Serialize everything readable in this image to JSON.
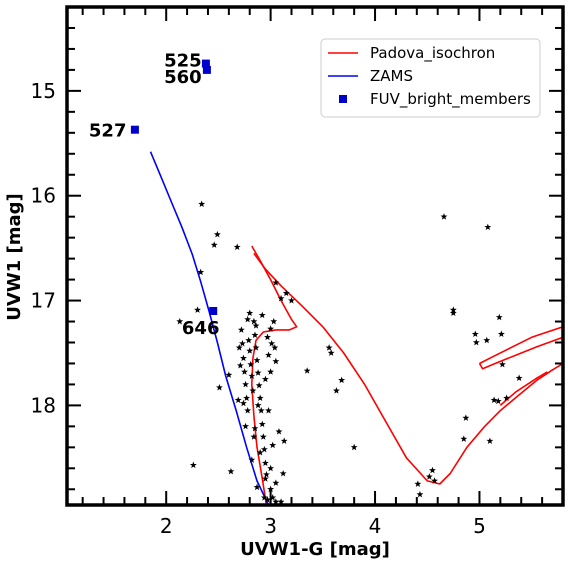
{
  "chart_data": {
    "type": "scatter",
    "xlabel": "UVW1-G [mag]",
    "ylabel": "UVW1 [mag]",
    "xlim": [
      1.05,
      5.8
    ],
    "ylim": [
      18.95,
      14.2
    ],
    "y_inverted": true,
    "grid": false,
    "legend_position": "top-right",
    "x_ticks": [
      2,
      3,
      4,
      5
    ],
    "y_ticks": [
      15,
      16,
      17,
      18
    ],
    "x_tick_labels": [
      "2",
      "3",
      "4",
      "5"
    ],
    "y_tick_labels": [
      "15",
      "16",
      "17",
      "18"
    ],
    "legend": [
      {
        "label": "Padova_isochron",
        "color": "#ff0000",
        "kind": "line"
      },
      {
        "label": "ZAMS",
        "color": "#0000ff",
        "kind": "line"
      },
      {
        "label": "FUV_bright_members",
        "color": "#0000cc",
        "kind": "square"
      }
    ],
    "series": [
      {
        "name": "Padova_isochron",
        "kind": "line",
        "color": "#ff0000",
        "segments": [
          [
            [
              2.82,
              16.48
            ],
            [
              2.9,
              16.62
            ],
            [
              3.0,
              16.8
            ],
            [
              3.1,
              17.0
            ],
            [
              3.2,
              17.18
            ],
            [
              3.25,
              17.25
            ],
            [
              3.18,
              17.28
            ],
            [
              3.05,
              17.28
            ],
            [
              2.93,
              17.3
            ],
            [
              2.86,
              17.38
            ],
            [
              2.83,
              17.55
            ],
            [
              2.82,
              17.8
            ],
            [
              2.84,
              18.1
            ],
            [
              2.87,
              18.4
            ],
            [
              2.92,
              18.7
            ],
            [
              2.96,
              18.95
            ]
          ],
          [
            [
              2.84,
              16.55
            ],
            [
              2.95,
              16.7
            ],
            [
              3.1,
              16.86
            ],
            [
              3.3,
              17.05
            ],
            [
              3.5,
              17.25
            ],
            [
              3.7,
              17.5
            ],
            [
              3.9,
              17.8
            ],
            [
              4.1,
              18.15
            ],
            [
              4.3,
              18.5
            ],
            [
              4.5,
              18.72
            ],
            [
              4.62,
              18.75
            ],
            [
              4.72,
              18.65
            ],
            [
              4.88,
              18.4
            ],
            [
              5.05,
              18.2
            ],
            [
              5.2,
              18.05
            ],
            [
              5.38,
              17.9
            ],
            [
              5.55,
              17.76
            ],
            [
              5.7,
              17.66
            ],
            [
              5.8,
              17.6
            ]
          ],
          [
            [
              5.0,
              17.6
            ],
            [
              5.1,
              17.55
            ],
            [
              5.3,
              17.45
            ],
            [
              5.5,
              17.35
            ],
            [
              5.8,
              17.25
            ]
          ],
          [
            [
              5.0,
              17.6
            ],
            [
              5.03,
              17.65
            ],
            [
              5.15,
              17.6
            ],
            [
              5.35,
              17.52
            ],
            [
              5.55,
              17.44
            ],
            [
              5.8,
              17.35
            ]
          ],
          [
            [
              5.2,
              18.0
            ],
            [
              5.35,
              17.87
            ],
            [
              5.55,
              17.74
            ],
            [
              5.65,
              17.68
            ]
          ]
        ]
      },
      {
        "name": "ZAMS",
        "kind": "line",
        "color": "#0000ff",
        "points": [
          [
            1.85,
            15.58
          ],
          [
            1.95,
            15.82
          ],
          [
            2.05,
            16.06
          ],
          [
            2.15,
            16.3
          ],
          [
            2.25,
            16.56
          ],
          [
            2.33,
            16.82
          ],
          [
            2.41,
            17.1
          ],
          [
            2.49,
            17.4
          ],
          [
            2.57,
            17.72
          ],
          [
            2.67,
            18.05
          ],
          [
            2.77,
            18.4
          ],
          [
            2.87,
            18.72
          ],
          [
            2.98,
            18.95
          ]
        ]
      },
      {
        "name": "FUV_bright_members",
        "kind": "square",
        "color": "#0000cc",
        "points": [
          [
            2.38,
            14.74
          ],
          [
            2.39,
            14.8
          ],
          [
            1.7,
            15.37
          ],
          [
            2.45,
            17.1
          ]
        ],
        "labels": [
          {
            "text": "525",
            "x": 1.98,
            "y": 14.7
          },
          {
            "text": "560",
            "x": 1.98,
            "y": 14.86
          },
          {
            "text": "527",
            "x": 1.26,
            "y": 15.37
          },
          {
            "text": "646",
            "x": 2.15,
            "y": 17.25
          }
        ]
      },
      {
        "kind": "star",
        "color": "#000000",
        "points": [
          [
            2.34,
            16.08
          ],
          [
            2.46,
            16.47
          ],
          [
            2.49,
            16.37
          ],
          [
            2.68,
            16.49
          ],
          [
            2.33,
            16.73
          ],
          [
            2.3,
            17.09
          ],
          [
            2.13,
            17.2
          ],
          [
            2.26,
            18.57
          ],
          [
            2.51,
            17.83
          ],
          [
            2.6,
            17.71
          ],
          [
            2.62,
            18.63
          ],
          [
            2.72,
            17.28
          ],
          [
            2.73,
            17.41
          ],
          [
            2.74,
            17.55
          ],
          [
            2.75,
            17.68
          ],
          [
            2.76,
            17.8
          ],
          [
            2.77,
            17.93
          ],
          [
            2.78,
            18.05
          ],
          [
            2.74,
            17.98
          ],
          [
            2.79,
            17.38
          ],
          [
            2.8,
            17.48
          ],
          [
            2.81,
            17.61
          ],
          [
            2.82,
            17.72
          ],
          [
            2.83,
            17.86
          ],
          [
            2.84,
            17.2
          ],
          [
            2.85,
            17.33
          ],
          [
            2.86,
            17.45
          ],
          [
            2.87,
            17.57
          ],
          [
            2.88,
            17.69
          ],
          [
            2.89,
            17.81
          ],
          [
            2.9,
            17.93
          ],
          [
            2.91,
            18.05
          ],
          [
            2.92,
            18.18
          ],
          [
            2.93,
            18.3
          ],
          [
            2.94,
            18.42
          ],
          [
            2.95,
            18.55
          ],
          [
            2.96,
            18.66
          ],
          [
            2.78,
            17.18
          ],
          [
            2.86,
            17.24
          ],
          [
            2.92,
            17.14
          ],
          [
            2.97,
            17.35
          ],
          [
            2.98,
            17.52
          ],
          [
            3.0,
            17.68
          ],
          [
            3.01,
            17.41
          ],
          [
            3.03,
            17.2
          ],
          [
            3.05,
            17.58
          ],
          [
            2.88,
            18.0
          ],
          [
            2.85,
            18.22
          ],
          [
            2.9,
            18.45
          ],
          [
            2.95,
            18.7
          ],
          [
            3.0,
            18.8
          ],
          [
            3.02,
            18.88
          ],
          [
            3.05,
            18.92
          ],
          [
            2.97,
            18.9
          ],
          [
            3.0,
            18.6
          ],
          [
            3.05,
            18.74
          ],
          [
            3.1,
            18.92
          ],
          [
            3.12,
            18.65
          ],
          [
            3.08,
            18.25
          ],
          [
            2.98,
            18.05
          ],
          [
            3.02,
            18.38
          ],
          [
            2.8,
            17.12
          ],
          [
            2.84,
            18.3
          ],
          [
            2.76,
            18.2
          ],
          [
            2.7,
            17.45
          ],
          [
            2.71,
            17.62
          ],
          [
            2.69,
            17.95
          ],
          [
            2.82,
            18.52
          ],
          [
            2.87,
            18.78
          ],
          [
            2.94,
            18.88
          ],
          [
            3.0,
            17.27
          ],
          [
            2.95,
            17.75
          ],
          [
            3.04,
            17.45
          ],
          [
            3.13,
            18.34
          ],
          [
            3.05,
            16.83
          ],
          [
            3.15,
            16.93
          ],
          [
            3.1,
            16.98
          ],
          [
            3.2,
            17.0
          ],
          [
            3.35,
            17.67
          ],
          [
            3.56,
            17.45
          ],
          [
            3.58,
            17.5
          ],
          [
            3.63,
            17.86
          ],
          [
            3.68,
            17.76
          ],
          [
            3.8,
            18.4
          ],
          [
            4.41,
            18.75
          ],
          [
            4.43,
            18.85
          ],
          [
            4.52,
            18.68
          ],
          [
            4.55,
            18.62
          ],
          [
            4.57,
            18.72
          ],
          [
            4.66,
            16.2
          ],
          [
            4.75,
            17.09
          ],
          [
            4.75,
            17.12
          ],
          [
            4.85,
            18.32
          ],
          [
            4.87,
            18.12
          ],
          [
            4.96,
            17.32
          ],
          [
            4.97,
            17.4
          ],
          [
            5.07,
            17.38
          ],
          [
            5.1,
            18.34
          ],
          [
            5.08,
            16.3
          ],
          [
            5.14,
            17.95
          ],
          [
            5.18,
            17.96
          ],
          [
            5.19,
            17.16
          ],
          [
            5.21,
            17.32
          ],
          [
            5.22,
            17.61
          ],
          [
            5.26,
            17.93
          ],
          [
            5.38,
            17.74
          ]
        ]
      }
    ]
  }
}
